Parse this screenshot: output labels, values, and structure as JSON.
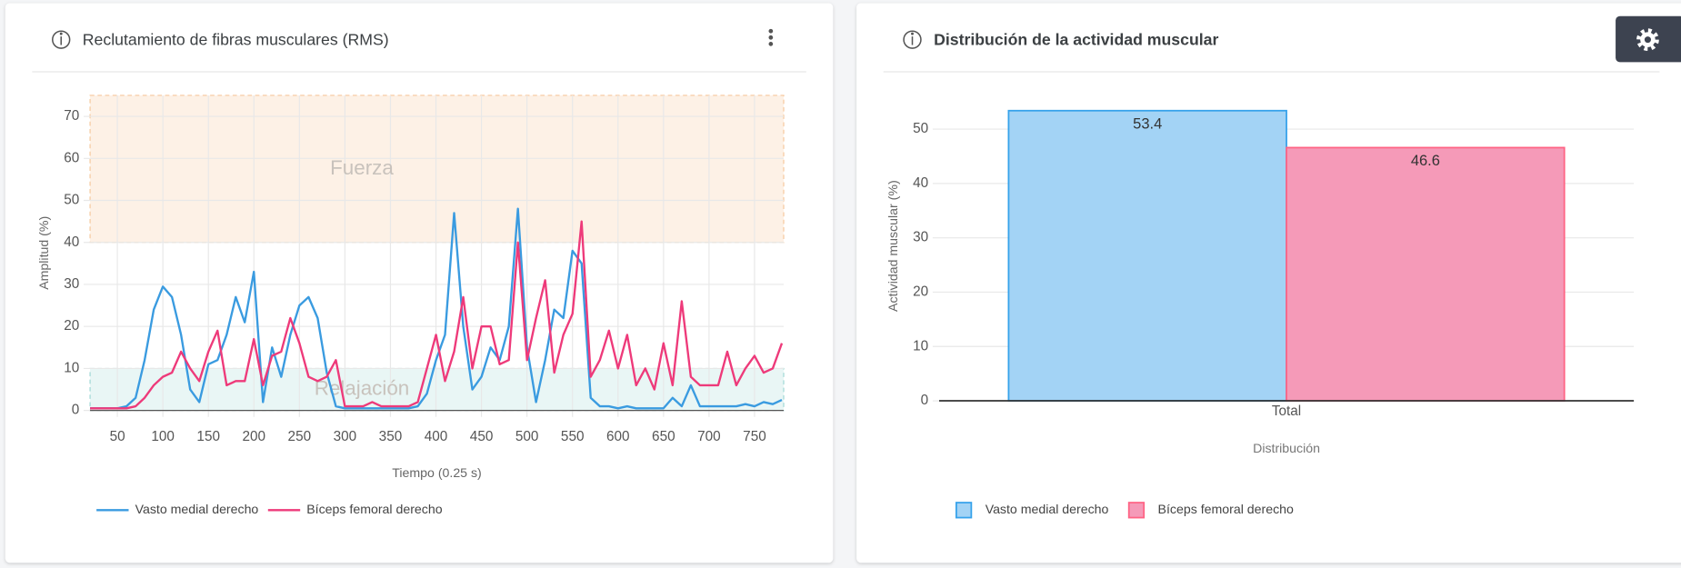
{
  "chart_data": [
    {
      "type": "line",
      "title": "Reclutamiento de fibras musculares (RMS)",
      "xlabel": "Tiempo (0.25 s)",
      "ylabel": "Amplitud (%)",
      "xlim": [
        20,
        782
      ],
      "xticks": [
        50,
        100,
        150,
        200,
        250,
        300,
        350,
        400,
        450,
        500,
        550,
        600,
        650,
        700,
        750
      ],
      "ylim": [
        0,
        75
      ],
      "yticks": [
        0,
        10,
        20,
        30,
        40,
        50,
        60,
        70
      ],
      "grid": true,
      "bands": [
        {
          "label": "Fuerza",
          "from": 40,
          "to": 75,
          "color": "#fdf1e6",
          "border": "#f6c89c"
        },
        {
          "label": "Relajación",
          "from": 0,
          "to": 10,
          "color": "#e9f6f5",
          "border": "#9ed8d4"
        }
      ],
      "x": [
        20,
        30,
        40,
        50,
        60,
        70,
        80,
        90,
        100,
        110,
        120,
        130,
        140,
        150,
        160,
        170,
        180,
        190,
        200,
        210,
        220,
        230,
        240,
        250,
        260,
        270,
        280,
        290,
        300,
        310,
        320,
        330,
        340,
        350,
        360,
        370,
        380,
        390,
        400,
        410,
        420,
        430,
        440,
        450,
        460,
        470,
        480,
        490,
        500,
        510,
        520,
        530,
        540,
        550,
        560,
        570,
        580,
        590,
        600,
        610,
        620,
        630,
        640,
        650,
        660,
        670,
        680,
        690,
        700,
        710,
        720,
        730,
        740,
        750,
        760,
        770,
        780
      ],
      "series": [
        {
          "name": "Vasto medial derecho",
          "color": "#3a9be0",
          "values": [
            0.5,
            0.5,
            0.5,
            0.5,
            1,
            3,
            12,
            24,
            29.5,
            27,
            18,
            5,
            2,
            11,
            12,
            18,
            27,
            21,
            33,
            2,
            15,
            8,
            18,
            25,
            27,
            22,
            9,
            1,
            0.5,
            0.5,
            0.5,
            0.5,
            0.5,
            0.5,
            0.5,
            0.5,
            1,
            4,
            12,
            18,
            47,
            20,
            5,
            8,
            15,
            12,
            20,
            48,
            15,
            2,
            12,
            24,
            22,
            38,
            35,
            3,
            1,
            1,
            0.5,
            1,
            0.5,
            0.5,
            0.5,
            0.5,
            3,
            1,
            6,
            1,
            1,
            1,
            1,
            1,
            1.5,
            1,
            2,
            1.5,
            2.5
          ]
        },
        {
          "name": "Bíceps femoral derecho",
          "color": "#ee3a7a",
          "values": [
            0.5,
            0.5,
            0.5,
            0.5,
            0.5,
            1,
            3,
            6,
            8,
            9,
            14,
            10,
            7,
            14,
            19,
            6,
            7,
            7,
            17,
            6,
            13,
            14,
            22,
            16,
            8,
            7,
            8,
            12,
            1,
            1,
            1,
            2,
            1,
            1,
            1,
            1,
            2,
            10,
            18,
            7,
            14,
            27,
            10,
            20,
            20,
            11,
            12,
            40,
            12,
            22,
            31,
            9,
            18,
            23,
            45,
            8,
            12,
            19,
            10,
            18,
            6,
            10,
            5,
            16,
            6,
            26,
            8,
            6,
            6,
            6,
            14,
            6,
            10,
            13,
            9,
            10,
            16
          ]
        }
      ]
    },
    {
      "type": "bar",
      "title": "Distribución de la actividad muscular",
      "xlabel": "Distribución",
      "ylabel": "Actividad muscular (%)",
      "categories": [
        "Total"
      ],
      "ylim": [
        0,
        57
      ],
      "yticks": [
        0,
        10,
        20,
        30,
        40,
        50
      ],
      "grid": true,
      "series": [
        {
          "name": "Vasto medial derecho",
          "color": "#36a2eb",
          "fill": "#a3d3f5",
          "values": [
            53.4
          ]
        },
        {
          "name": "Bíceps femoral derecho",
          "color": "#ff6384",
          "fill": "#f59ab8",
          "values": [
            46.6
          ]
        }
      ]
    }
  ]
}
